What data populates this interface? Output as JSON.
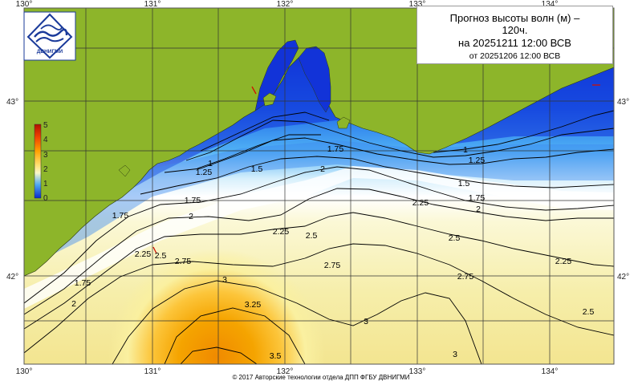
{
  "header": {
    "title_line1": "Прогноз высоты волн (м) –",
    "title_line2": "120ч.",
    "title_line3": "на 20251211 12:00 ВСВ",
    "title_line4": "от 20251206 12:00 ВСВ"
  },
  "logo": {
    "text": "ДВНИГМИ",
    "icon": "dvnigmi-wave-logo"
  },
  "footer": {
    "text": "© 2017 Авторские технологии отдела ДПП ФГБУ ДВНИГМИ"
  },
  "longitude_labels": [
    "130°",
    "131°",
    "132°",
    "133°",
    "134°"
  ],
  "latitude_labels": [
    "43°",
    "42°"
  ],
  "legend": {
    "ticks": [
      "5",
      "4",
      "3",
      "2",
      "1",
      "0"
    ],
    "colors": [
      "#b01000",
      "#f04000",
      "#ffa000",
      "#ffe070",
      "#f8f8c8",
      "#4fa8f0",
      "#0a2acc"
    ]
  },
  "contour_labels": [
    "1",
    "1.25",
    "1.5",
    "1.75",
    "2",
    "2.25",
    "2.5",
    "2.75",
    "3",
    "3.25",
    "3.5"
  ],
  "colors": {
    "land": "#8db52a",
    "deep_low": "#0a1acc",
    "high": "#f5a000"
  }
}
